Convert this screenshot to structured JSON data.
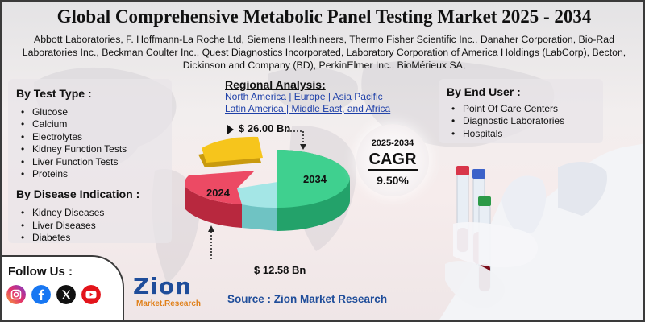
{
  "title": "Global Comprehensive Metabolic Panel Testing Market 2025 - 2034",
  "companies": "Abbott Laboratories, F. Hoffmann-La Roche Ltd, Siemens Healthineers, Thermo Fisher Scientific Inc., Danaher Corporation, Bio-Rad Laboratories Inc., Beckman Coulter Inc., Quest Diagnostics Incorporated, Laboratory Corporation of America Holdings (LabCorp), Becton, Dickinson and Company (BD), PerkinElmer Inc., BioMérieux SA,",
  "test_type": {
    "title": "By Test Type :",
    "items": [
      "Glucose",
      "Calcium",
      "Electrolytes",
      "Kidney Function Tests",
      "Liver Function Tests",
      "Proteins"
    ]
  },
  "disease": {
    "title": "By Disease Indication :",
    "items": [
      "Kidney Diseases",
      "Liver Diseases",
      "Diabetes"
    ]
  },
  "end_user": {
    "title": "By End User :",
    "items": [
      "Point Of Care Centers",
      "Diagnostic Laboratories",
      "Hospitals"
    ]
  },
  "regional": {
    "title": "Regional Analysis:",
    "line1": "North America | Europe | Asia Pacific",
    "line2": "Latin America | Middle East, and Africa"
  },
  "market": {
    "value_2034": "$ 26.00 Bn",
    "value_2024": "$ 12.58 Bn",
    "label_2034": "2034",
    "label_2024": "2024"
  },
  "cagr": {
    "period": "2025-2034",
    "label": "CAGR",
    "value": "9.50%"
  },
  "follow": {
    "label": "Follow Us :",
    "icons": [
      "instagram-icon",
      "facebook-icon",
      "x-icon",
      "youtube-icon"
    ]
  },
  "logo": {
    "main": "Zion",
    "sub": "Market.Research"
  },
  "source": "Source : Zion Market Research",
  "colors": {
    "green": "#2ecc8a",
    "red": "#e9485f",
    "yellow": "#f4c21a",
    "teal": "#8fdcdc",
    "brand_blue": "#1f4d9a",
    "brand_orange": "#e0801a"
  }
}
